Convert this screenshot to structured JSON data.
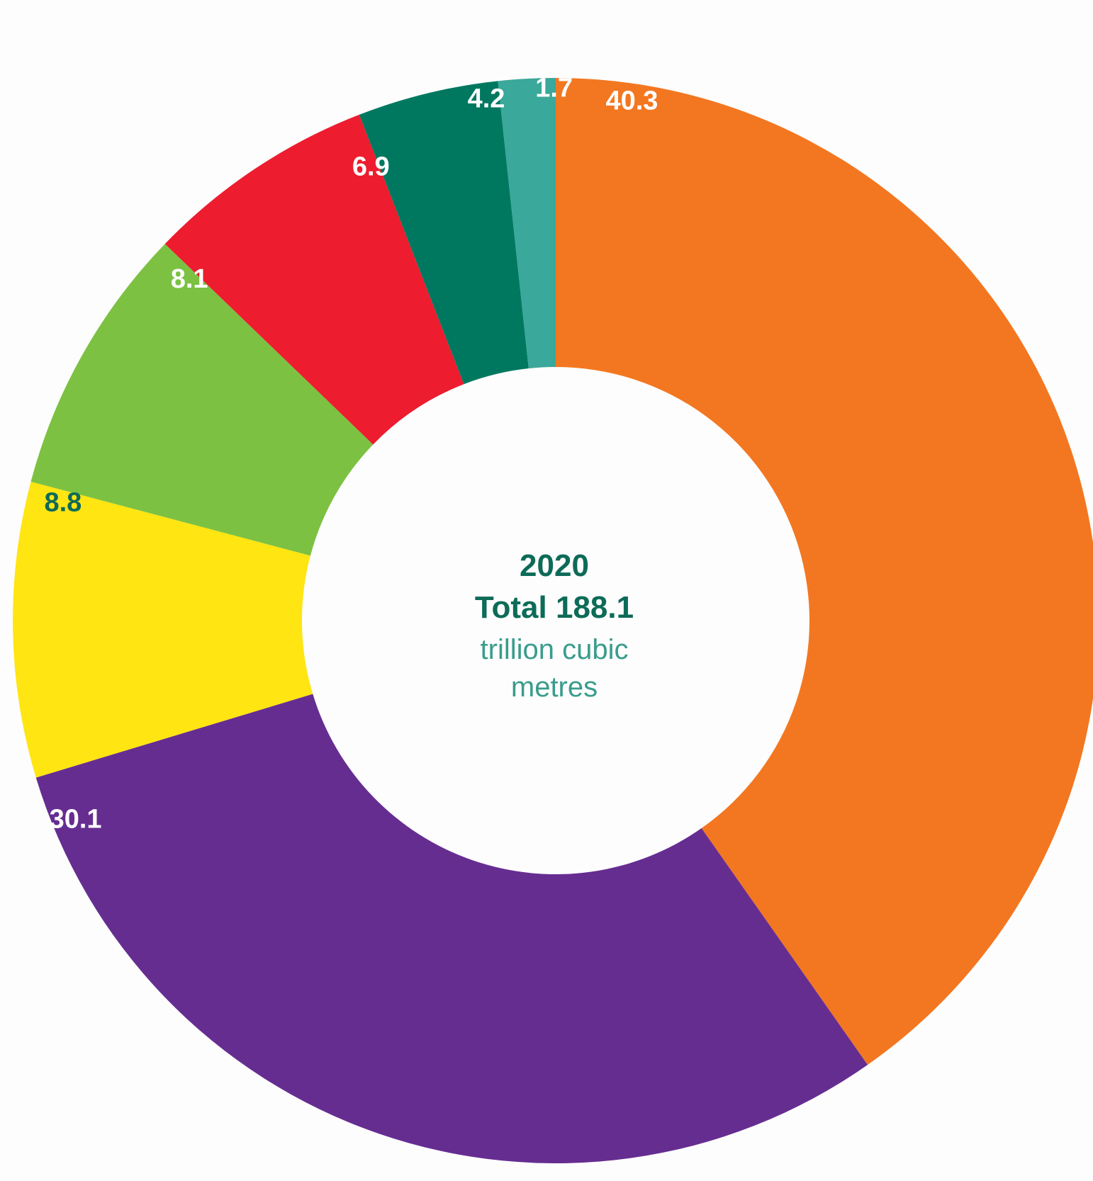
{
  "chart_data": {
    "type": "pie",
    "center": {
      "year": "2020",
      "total": "Total 188.1",
      "unit_line1": "trillion cubic",
      "unit_line2": "metres"
    },
    "slices": [
      {
        "label": "40.3",
        "value": 40.3,
        "color": "#f37721",
        "label_color": "#ffffff"
      },
      {
        "label": "30.1",
        "value": 30.1,
        "color": "#662d91",
        "label_color": "#ffffff"
      },
      {
        "label": "8.8",
        "value": 8.8,
        "color": "#ffe512",
        "label_color": "#0d6b58"
      },
      {
        "label": "8.1",
        "value": 8.1,
        "color": "#7cc142",
        "label_color": "#ffffff"
      },
      {
        "label": "6.9",
        "value": 6.9,
        "color": "#ed1c2e",
        "label_color": "#ffffff"
      },
      {
        "label": "4.2",
        "value": 4.2,
        "color": "#007860",
        "label_color": "#ffffff"
      },
      {
        "label": "1.7",
        "value": 1.7,
        "color": "#3aa89a",
        "label_color": "#ffffff"
      }
    ]
  }
}
